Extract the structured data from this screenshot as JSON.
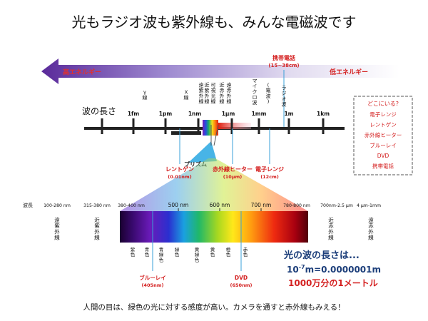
{
  "title": "光もラジオ波も紫外線も、みんな電磁波です",
  "energy": {
    "high": "高エネルギー",
    "low": "低エネルギー"
  },
  "mobile": {
    "label": "携帯電話",
    "range": "(15~38cm)"
  },
  "wave_types": [
    {
      "name": "γ線"
    },
    {
      "name": "X線"
    },
    {
      "name": "遠紫外線"
    },
    {
      "name": "近紫外線"
    },
    {
      "name": "可視光線"
    },
    {
      "name": "近赤外線"
    },
    {
      "name": "遠赤外線"
    },
    {
      "name": "マイクロ波"
    },
    {
      "name": "(電波)"
    },
    {
      "name": "ラジオ波"
    }
  ],
  "scale_title": "波の長さ",
  "scale_ticks": [
    "1fm",
    "1pm",
    "1nm",
    "1μm",
    "1mm",
    "1m",
    "1km"
  ],
  "callouts": [
    {
      "label": "レントゲン",
      "value": "(0.01nm)"
    },
    {
      "label": "赤外線ヒーター",
      "value": "(10μm)"
    },
    {
      "label": "電子レンジ",
      "value": "(12cm)"
    }
  ],
  "prism_label": "プリズム",
  "legend": {
    "title": "どこにいる?",
    "items": [
      "電子レンジ",
      "レントゲン",
      "赤外線ヒーター",
      "ブルーレイ",
      "DVD",
      "携帯電話"
    ]
  },
  "wavelength_label": "波長",
  "wavelength_ranges": [
    "100-280 nm",
    "315-380 nm",
    "380-400 nm",
    "780-800 nm",
    "700nm-2.5 μm",
    "4 μm-1mm"
  ],
  "spectrum_ticks": [
    "500 nm",
    "600 nm",
    "700 nm"
  ],
  "side_bands": [
    "遠紫外線",
    "近紫外線",
    "近赤外線",
    "遠赤外線"
  ],
  "colors": [
    "紫色",
    "青色",
    "青緑色",
    "緑色",
    "黄緑色",
    "黄色",
    "橙色",
    "赤色"
  ],
  "bottom_callouts": [
    {
      "label": "ブルーレイ",
      "value": "(405nm)"
    },
    {
      "label": "DVD",
      "value": "(650nm)"
    }
  ],
  "info": {
    "line1": "光の波の長さは...",
    "line2_prefix": "10",
    "line2_exp": "-7",
    "line2_rest": "m=0.0000001m",
    "line3": "1000万分の1メートル"
  },
  "footer": "人間の目は、緑色の光に対する感度が高い。カメラを通すと赤外線もみえる！",
  "accent_red": "#d42020",
  "accent_blue": "#3aa0d8",
  "accent_navy": "#1c3e7a"
}
